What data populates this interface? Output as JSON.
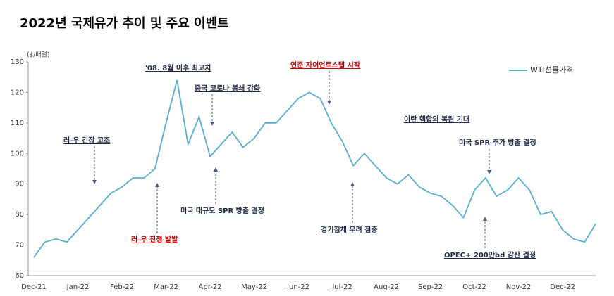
{
  "chart_data": {
    "type": "line",
    "title": "2022년 국제유가 추이 및 주요 이벤트",
    "y_label": "($/배럴)",
    "categories": [
      "Dec-21",
      null,
      null,
      null,
      "Jan-22",
      null,
      null,
      null,
      "Feb-22",
      null,
      null,
      null,
      "Mar-22",
      null,
      null,
      null,
      "Apr-22",
      null,
      null,
      null,
      "May-22",
      null,
      null,
      null,
      "Jun-22",
      null,
      null,
      null,
      "Jul-22",
      null,
      null,
      null,
      "Aug-22",
      null,
      null,
      null,
      "Sep-22",
      null,
      null,
      null,
      "Oct-22",
      null,
      null,
      null,
      "Nov-22",
      null,
      null,
      null,
      "Dec-22",
      null,
      null,
      null
    ],
    "series": [
      {
        "name": "WTI선물가격",
        "color": "#5aaecb",
        "values": [
          66,
          71,
          72,
          71,
          75,
          79,
          83,
          87,
          89,
          92,
          92,
          95,
          110,
          124,
          103,
          112,
          99,
          103,
          107,
          102,
          105,
          110,
          110,
          114,
          118,
          120,
          118,
          110,
          104,
          96,
          100,
          96,
          92,
          90,
          93,
          89,
          87,
          86,
          83,
          79,
          88,
          92,
          86,
          88,
          92,
          88,
          80,
          81,
          75,
          72,
          71,
          77
        ]
      }
    ],
    "ylim": [
      60,
      130
    ],
    "yticks": [
      60,
      70,
      80,
      90,
      100,
      110,
      120,
      130
    ],
    "legend": "upper-right",
    "annotations": [
      {
        "text": "'08. 8월 이후 최고치",
        "color": "#1f2a44"
      },
      {
        "text": "중국 코로나 봉쇄 강화",
        "color": "#1f2a44"
      },
      {
        "text": "연준 자이언트스텝 시작",
        "color": "#c00000"
      },
      {
        "text": "러-우 긴장 고조",
        "color": "#1f2a44"
      },
      {
        "text": "러-우 전쟁 발발",
        "color": "#c00000"
      },
      {
        "text": "미국 대규모 SPR 방출 결정",
        "color": "#1f2a44"
      },
      {
        "text": "경기침체 우려 점증",
        "color": "#1f2a44"
      },
      {
        "text": "이란 핵합의 복원 기대",
        "color": "#1f2a44"
      },
      {
        "text": "미국 SPR 추가 방출 결정",
        "color": "#1f2a44"
      },
      {
        "text": "OPEC+ 200만bd 감산 결정",
        "color": "#1f2a44"
      }
    ]
  }
}
